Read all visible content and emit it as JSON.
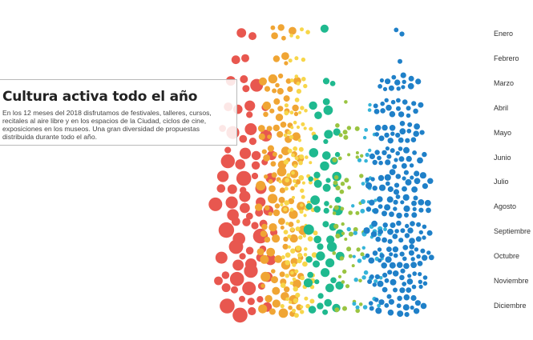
{
  "chart_data": {
    "type": "scatter",
    "title": "Cultura activa todo el año",
    "categories": [
      "Enero",
      "Febrero",
      "Marzo",
      "Abril",
      "Mayo",
      "Junio",
      "Julio",
      "Agosto",
      "Septiembre",
      "Octubre",
      "Noviembre",
      "Diciembre"
    ],
    "groups": [
      {
        "color": "#e8574f",
        "counts": [
          2,
          2,
          5,
          10,
          13,
          17,
          22,
          20,
          19,
          17,
          18,
          17
        ]
      },
      {
        "color": "#f0a534",
        "counts": [
          5,
          4,
          10,
          13,
          13,
          13,
          14,
          15,
          17,
          17,
          16,
          15
        ]
      },
      {
        "color": "#f7d64a",
        "counts": [
          4,
          3,
          6,
          8,
          11,
          12,
          13,
          13,
          13,
          14,
          13,
          13
        ]
      },
      {
        "color": "#1fb98f",
        "counts": [
          1,
          0,
          2,
          4,
          4,
          5,
          7,
          7,
          7,
          7,
          7,
          6
        ]
      },
      {
        "color": "#9ac441",
        "counts": [
          0,
          0,
          0,
          1,
          6,
          6,
          8,
          7,
          8,
          7,
          5,
          5
        ]
      },
      {
        "color": "#35b4d8",
        "counts": [
          0,
          0,
          0,
          2,
          3,
          4,
          4,
          6,
          10,
          7,
          6,
          5
        ]
      },
      {
        "color": "#1f80c8",
        "counts": [
          2,
          1,
          22,
          30,
          34,
          38,
          50,
          50,
          60,
          55,
          45,
          40
        ]
      }
    ]
  },
  "month_labels": [
    "Enero",
    "Febrero",
    "Marzo",
    "Abril",
    "Mayo",
    "Junio",
    "Julio",
    "Agosto",
    "Septiembre",
    "Octubre",
    "Noviembre",
    "Diciembre"
  ],
  "info": {
    "title": "Cultura activa todo el año",
    "text": "En los 12 meses del 2018 disfrutamos de festivales, talleres, cursos, recitales al aire libre y en los espacios de la Ciudad, ciclos de cine, exposiciones en los museos. Una gran diversidad de propuestas distribuida durante todo el año."
  }
}
